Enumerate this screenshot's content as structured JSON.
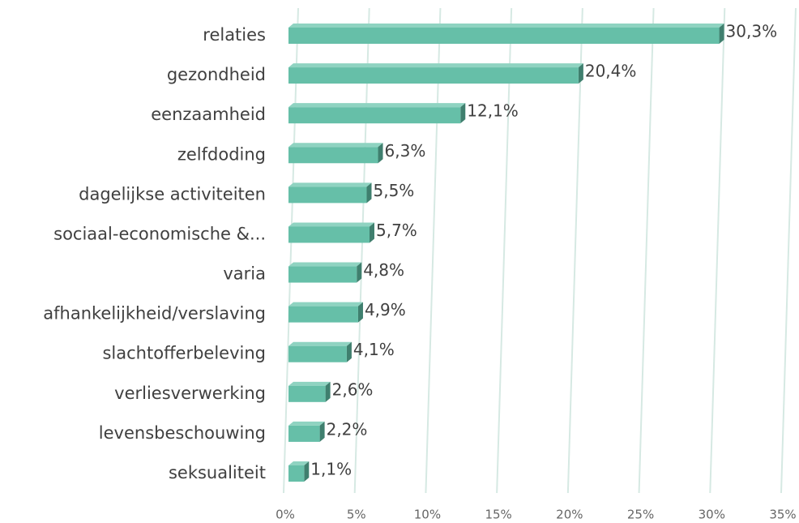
{
  "chart_data": {
    "type": "bar",
    "orientation": "horizontal",
    "categories": [
      "relaties",
      "gezondheid",
      "eenzaamheid",
      "zelfdoding",
      "dagelijkse activiteiten",
      "sociaal-economische &...",
      "varia",
      "afhankelijkheid/verslaving",
      "slachtofferbeleving",
      "verliesverwerking",
      "levensbeschouwing",
      "seksualiteit"
    ],
    "values": [
      30.3,
      20.4,
      12.1,
      6.3,
      5.5,
      5.7,
      4.8,
      4.9,
      4.1,
      2.6,
      2.2,
      1.1
    ],
    "value_labels": [
      "30,3%",
      "20,4%",
      "12,1%",
      "6,3%",
      "5,5%",
      "5,7%",
      "4,8%",
      "4,9%",
      "4,1%",
      "2,6%",
      "2,2%",
      "1,1%"
    ],
    "color": "#66bfa8",
    "xlim": [
      0,
      35
    ],
    "xticks": [
      {
        "value": 0,
        "label": "0%"
      },
      {
        "value": 5,
        "label": "5%"
      },
      {
        "value": 10,
        "label": "10%"
      },
      {
        "value": 15,
        "label": "15%"
      },
      {
        "value": 20,
        "label": "20%"
      },
      {
        "value": 25,
        "label": "25%"
      },
      {
        "value": 30,
        "label": "30%"
      },
      {
        "value": 35,
        "label": "35%"
      }
    ],
    "grid": true
  }
}
